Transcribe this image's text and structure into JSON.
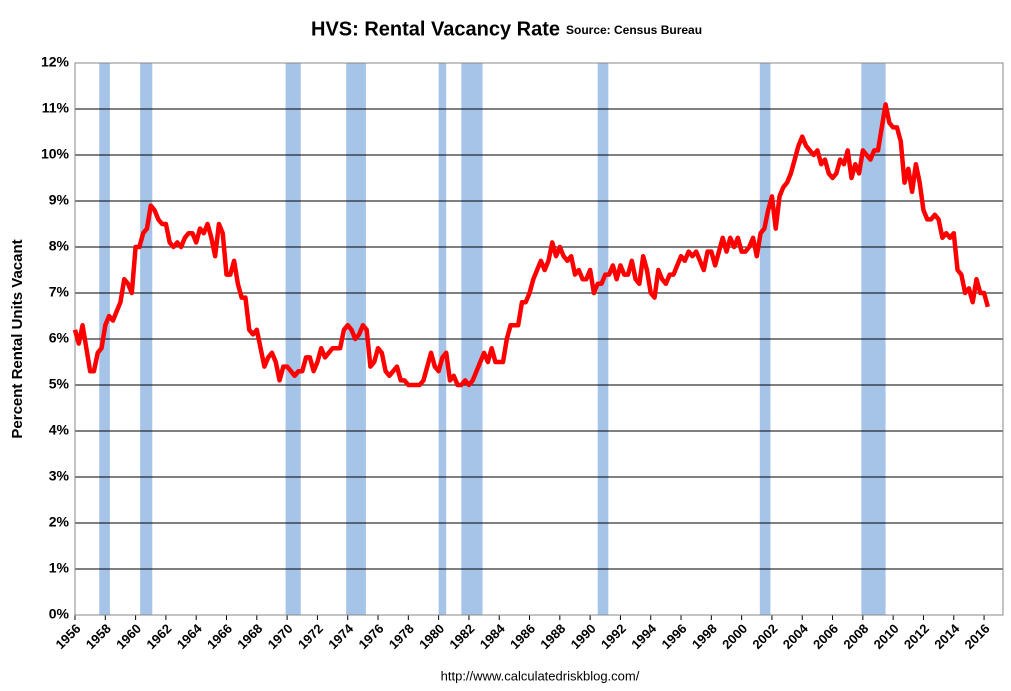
{
  "chart_data": {
    "type": "line",
    "title": "HVS: Rental Vacancy Rate",
    "subtitle": "Source: Census Bureau",
    "y_label": "Percent Rental Units Vacant",
    "footer": "http://www.calculatedriskblog.com/",
    "xlim": [
      1956,
      2017.25
    ],
    "xticks": [
      1956,
      1958,
      1960,
      1962,
      1964,
      1966,
      1968,
      1970,
      1972,
      1974,
      1976,
      1978,
      1980,
      1982,
      1984,
      1986,
      1988,
      1990,
      1992,
      1994,
      1996,
      1998,
      2000,
      2002,
      2004,
      2006,
      2008,
      2010,
      2012,
      2014,
      2016
    ],
    "ylim": [
      0,
      12
    ],
    "yticks": [
      {
        "value": 0,
        "label": "0%"
      },
      {
        "value": 1,
        "label": "1%"
      },
      {
        "value": 2,
        "label": "2%"
      },
      {
        "value": 3,
        "label": "3%"
      },
      {
        "value": 4,
        "label": "4%"
      },
      {
        "value": 5,
        "label": "5%"
      },
      {
        "value": 6,
        "label": "6%"
      },
      {
        "value": 7,
        "label": "7%"
      },
      {
        "value": 8,
        "label": "8%"
      },
      {
        "value": 9,
        "label": "9%"
      },
      {
        "value": 10,
        "label": "10%"
      },
      {
        "value": 11,
        "label": "11%"
      },
      {
        "value": 12,
        "label": "12%"
      }
    ],
    "grid": true,
    "recession_color": "#a6c3e8",
    "recessions": [
      [
        1957.6,
        1958.3
      ],
      [
        1960.3,
        1961.1
      ],
      [
        1969.9,
        1970.9
      ],
      [
        1973.9,
        1975.2
      ],
      [
        1980.0,
        1980.5
      ],
      [
        1981.5,
        1982.9
      ],
      [
        1990.5,
        1991.2
      ],
      [
        2001.2,
        2001.9
      ],
      [
        2007.9,
        2009.5
      ]
    ],
    "x": [
      1956,
      1956.25,
      1956.5,
      1956.75,
      1957,
      1957.25,
      1957.5,
      1957.75,
      1958,
      1958.25,
      1958.5,
      1958.75,
      1959,
      1959.25,
      1959.5,
      1959.75,
      1960,
      1960.25,
      1960.5,
      1960.75,
      1961,
      1961.25,
      1961.5,
      1961.75,
      1962,
      1962.25,
      1962.5,
      1962.75,
      1963,
      1963.25,
      1963.5,
      1963.75,
      1964,
      1964.25,
      1964.5,
      1964.75,
      1965,
      1965.25,
      1965.5,
      1965.75,
      1966,
      1966.25,
      1966.5,
      1966.75,
      1967,
      1967.25,
      1967.5,
      1967.75,
      1968,
      1968.25,
      1968.5,
      1968.75,
      1969,
      1969.25,
      1969.5,
      1969.75,
      1970,
      1970.25,
      1970.5,
      1970.75,
      1971,
      1971.25,
      1971.5,
      1971.75,
      1972,
      1972.25,
      1972.5,
      1972.75,
      1973,
      1973.25,
      1973.5,
      1973.75,
      1974,
      1974.25,
      1974.5,
      1974.75,
      1975,
      1975.25,
      1975.5,
      1975.75,
      1976,
      1976.25,
      1976.5,
      1976.75,
      1977,
      1977.25,
      1977.5,
      1977.75,
      1978,
      1978.25,
      1978.5,
      1978.75,
      1979,
      1979.25,
      1979.5,
      1979.75,
      1980,
      1980.25,
      1980.5,
      1980.75,
      1981,
      1981.25,
      1981.5,
      1981.75,
      1982,
      1982.25,
      1982.5,
      1982.75,
      1983,
      1983.25,
      1983.5,
      1983.75,
      1984,
      1984.25,
      1984.5,
      1984.75,
      1985,
      1985.25,
      1985.5,
      1985.75,
      1986,
      1986.25,
      1986.5,
      1986.75,
      1987,
      1987.25,
      1987.5,
      1987.75,
      1988,
      1988.25,
      1988.5,
      1988.75,
      1989,
      1989.25,
      1989.5,
      1989.75,
      1990,
      1990.25,
      1990.5,
      1990.75,
      1991,
      1991.25,
      1991.5,
      1991.75,
      1992,
      1992.25,
      1992.5,
      1992.75,
      1993,
      1993.25,
      1993.5,
      1993.75,
      1994,
      1994.25,
      1994.5,
      1994.75,
      1995,
      1995.25,
      1995.5,
      1995.75,
      1996,
      1996.25,
      1996.5,
      1996.75,
      1997,
      1997.25,
      1997.5,
      1997.75,
      1998,
      1998.25,
      1998.5,
      1998.75,
      1999,
      1999.25,
      1999.5,
      1999.75,
      2000,
      2000.25,
      2000.5,
      2000.75,
      2001,
      2001.25,
      2001.5,
      2001.75,
      2002,
      2002.25,
      2002.5,
      2002.75,
      2003,
      2003.25,
      2003.5,
      2003.75,
      2004,
      2004.25,
      2004.5,
      2004.75,
      2005,
      2005.25,
      2005.5,
      2005.75,
      2006,
      2006.25,
      2006.5,
      2006.75,
      2007,
      2007.25,
      2007.5,
      2007.75,
      2008,
      2008.25,
      2008.5,
      2008.75,
      2009,
      2009.25,
      2009.5,
      2009.75,
      2010,
      2010.25,
      2010.5,
      2010.75,
      2011,
      2011.25,
      2011.5,
      2011.75,
      2012,
      2012.25,
      2012.5,
      2012.75,
      2013,
      2013.25,
      2013.5,
      2013.75,
      2014,
      2014.25,
      2014.5,
      2014.75,
      2015,
      2015.25,
      2015.5,
      2015.75,
      2016,
      2016.25
    ],
    "series": [
      {
        "color": "#ff0000",
        "values": [
          6.2,
          5.9,
          6.3,
          5.8,
          5.3,
          5.3,
          5.7,
          5.8,
          6.3,
          6.5,
          6.4,
          6.6,
          6.8,
          7.3,
          7.2,
          7.0,
          8.0,
          8.0,
          8.3,
          8.4,
          8.9,
          8.8,
          8.6,
          8.5,
          8.5,
          8.1,
          8.0,
          8.1,
          8.0,
          8.2,
          8.3,
          8.3,
          8.1,
          8.4,
          8.3,
          8.5,
          8.2,
          7.8,
          8.5,
          8.3,
          7.4,
          7.4,
          7.7,
          7.2,
          6.9,
          6.9,
          6.2,
          6.1,
          6.2,
          5.8,
          5.4,
          5.6,
          5.7,
          5.5,
          5.1,
          5.4,
          5.4,
          5.3,
          5.2,
          5.3,
          5.3,
          5.6,
          5.6,
          5.3,
          5.5,
          5.8,
          5.6,
          5.7,
          5.8,
          5.8,
          5.8,
          6.2,
          6.3,
          6.2,
          6.0,
          6.1,
          6.3,
          6.2,
          5.4,
          5.5,
          5.8,
          5.7,
          5.3,
          5.2,
          5.3,
          5.4,
          5.1,
          5.1,
          5.0,
          5.0,
          5.0,
          5.0,
          5.1,
          5.4,
          5.7,
          5.4,
          5.3,
          5.6,
          5.7,
          5.1,
          5.2,
          5.0,
          5.0,
          5.1,
          5.0,
          5.1,
          5.3,
          5.5,
          5.7,
          5.5,
          5.8,
          5.5,
          5.5,
          5.5,
          6.0,
          6.3,
          6.3,
          6.3,
          6.8,
          6.8,
          7.0,
          7.3,
          7.5,
          7.7,
          7.5,
          7.7,
          8.1,
          7.8,
          8.0,
          7.8,
          7.7,
          7.8,
          7.4,
          7.5,
          7.3,
          7.3,
          7.5,
          7.0,
          7.2,
          7.2,
          7.4,
          7.4,
          7.6,
          7.3,
          7.6,
          7.4,
          7.4,
          7.7,
          7.3,
          7.2,
          7.8,
          7.5,
          7.0,
          6.9,
          7.5,
          7.3,
          7.2,
          7.4,
          7.4,
          7.6,
          7.8,
          7.7,
          7.9,
          7.8,
          7.9,
          7.7,
          7.5,
          7.9,
          7.9,
          7.6,
          7.9,
          8.2,
          7.9,
          8.2,
          8.0,
          8.2,
          7.9,
          7.9,
          8.0,
          8.2,
          7.8,
          8.3,
          8.4,
          8.8,
          9.1,
          8.4,
          9.1,
          9.3,
          9.4,
          9.6,
          9.9,
          10.2,
          10.4,
          10.2,
          10.1,
          10.0,
          10.1,
          9.8,
          9.9,
          9.6,
          9.5,
          9.6,
          9.9,
          9.8,
          10.1,
          9.5,
          9.8,
          9.6,
          10.1,
          10.0,
          9.9,
          10.1,
          10.1,
          10.6,
          11.1,
          10.7,
          10.6,
          10.6,
          10.3,
          9.4,
          9.7,
          9.2,
          9.8,
          9.4,
          8.8,
          8.6,
          8.6,
          8.7,
          8.6,
          8.2,
          8.3,
          8.2,
          8.3,
          7.5,
          7.4,
          7.0,
          7.1,
          6.8,
          7.3,
          7.0,
          7.0,
          6.7
        ]
      }
    ]
  }
}
